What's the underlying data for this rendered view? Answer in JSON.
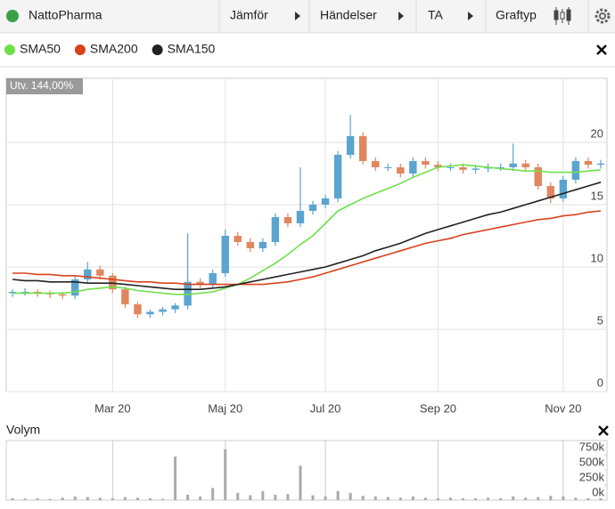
{
  "toolbar": {
    "title": "NattoPharma",
    "menus": [
      "Jämför",
      "Händelser",
      "TA",
      "Graftyp"
    ]
  },
  "chart_data": [
    {
      "type": "candlestick",
      "annotation": "Utv. 144,00%",
      "categories": [
        null,
        null,
        null,
        null,
        null,
        null,
        null,
        null,
        "Mar 20",
        null,
        null,
        null,
        null,
        null,
        null,
        null,
        null,
        "Maj 20",
        null,
        null,
        null,
        null,
        null,
        null,
        null,
        "Jul 20",
        null,
        null,
        null,
        null,
        null,
        null,
        null,
        null,
        "Sep 20",
        null,
        null,
        null,
        null,
        null,
        null,
        null,
        null,
        null,
        "Nov 20",
        null,
        null,
        null
      ],
      "open": [
        7.9,
        8.0,
        8.0,
        7.9,
        7.8,
        7.7,
        9.0,
        9.8,
        9.3,
        8.2,
        7.0,
        6.2,
        6.4,
        6.6,
        6.9,
        8.8,
        8.6,
        9.5,
        12.5,
        12.0,
        11.5,
        12.0,
        14.0,
        13.5,
        14.5,
        15.0,
        15.5,
        19.0,
        20.5,
        18.5,
        18.0,
        18.0,
        17.5,
        18.5,
        18.2,
        18.0,
        18.0,
        17.8,
        17.9,
        18.0,
        18.0,
        18.3,
        18.0,
        16.5,
        15.5,
        17.0,
        18.5,
        18.2
      ],
      "high": [
        8.2,
        8.3,
        8.2,
        8.1,
        8.0,
        9.3,
        10.4,
        10.1,
        9.5,
        8.4,
        7.2,
        6.6,
        6.8,
        7.1,
        12.7,
        9.1,
        9.8,
        13.0,
        12.8,
        12.3,
        12.3,
        14.3,
        14.3,
        18.0,
        15.3,
        15.8,
        19.3,
        22.2,
        20.8,
        18.8,
        18.3,
        18.3,
        18.8,
        18.8,
        18.5,
        18.3,
        18.3,
        18.2,
        18.3,
        18.3,
        19.9,
        18.6,
        18.3,
        16.8,
        17.3,
        18.8,
        18.8,
        18.6
      ],
      "low": [
        7.6,
        7.7,
        7.6,
        7.5,
        7.4,
        7.4,
        8.7,
        9.0,
        7.9,
        6.7,
        5.9,
        5.9,
        6.1,
        6.3,
        6.6,
        8.3,
        8.3,
        9.2,
        11.7,
        11.2,
        11.2,
        11.7,
        13.2,
        13.2,
        14.2,
        14.7,
        15.2,
        18.7,
        18.2,
        17.7,
        17.7,
        17.2,
        17.2,
        17.9,
        17.7,
        17.7,
        17.5,
        17.5,
        17.6,
        17.7,
        17.7,
        17.7,
        16.2,
        15.1,
        15.2,
        16.7,
        17.9,
        17.9
      ],
      "close": [
        8.0,
        8.0,
        7.9,
        7.8,
        7.7,
        9.0,
        9.8,
        9.3,
        8.2,
        7.0,
        6.2,
        6.4,
        6.6,
        6.9,
        8.8,
        8.6,
        9.5,
        12.5,
        12.0,
        11.5,
        12.0,
        14.0,
        13.5,
        14.5,
        15.0,
        15.5,
        19.0,
        20.5,
        18.5,
        18.0,
        18.0,
        17.5,
        18.5,
        18.2,
        18.0,
        18.0,
        17.8,
        17.9,
        18.0,
        18.0,
        18.3,
        18.0,
        16.5,
        15.5,
        17.0,
        18.5,
        18.2,
        18.3
      ],
      "up_color": "#5ba4cf",
      "down_color": "#e0875f",
      "series": [
        {
          "name": "SMA50",
          "color": "#6fe04a",
          "values": [
            7.9,
            7.9,
            7.9,
            7.9,
            7.9,
            8.0,
            8.2,
            8.3,
            8.4,
            8.3,
            8.1,
            8.0,
            7.9,
            7.8,
            7.8,
            7.9,
            8.0,
            8.3,
            8.6,
            9.1,
            9.7,
            10.3,
            11.0,
            11.8,
            12.5,
            13.5,
            14.5,
            15.0,
            15.5,
            15.9,
            16.3,
            16.7,
            17.2,
            17.6,
            18.0,
            18.1,
            18.2,
            18.1,
            18.0,
            17.9,
            17.8,
            17.7,
            17.7,
            17.6,
            17.6,
            17.6,
            17.7,
            17.8
          ]
        },
        {
          "name": "SMA200",
          "color": "#d9421c",
          "values": [
            9.5,
            9.5,
            9.4,
            9.4,
            9.3,
            9.3,
            9.2,
            9.1,
            9.0,
            8.9,
            8.8,
            8.8,
            8.7,
            8.7,
            8.6,
            8.6,
            8.6,
            8.6,
            8.6,
            8.6,
            8.6,
            8.7,
            8.8,
            9.0,
            9.2,
            9.5,
            9.8,
            10.1,
            10.4,
            10.7,
            11.0,
            11.3,
            11.6,
            11.9,
            12.1,
            12.3,
            12.6,
            12.8,
            13.0,
            13.2,
            13.4,
            13.6,
            13.8,
            13.9,
            14.1,
            14.2,
            14.4,
            14.5
          ]
        },
        {
          "name": "SMA150",
          "color": "#222222",
          "values": [
            9.0,
            8.9,
            8.9,
            8.8,
            8.8,
            8.8,
            8.7,
            8.7,
            8.7,
            8.6,
            8.5,
            8.4,
            8.3,
            8.2,
            8.2,
            8.2,
            8.3,
            8.4,
            8.6,
            8.8,
            9.0,
            9.2,
            9.4,
            9.6,
            9.8,
            10.0,
            10.3,
            10.6,
            10.9,
            11.3,
            11.6,
            11.9,
            12.3,
            12.7,
            13.0,
            13.3,
            13.6,
            13.9,
            14.2,
            14.4,
            14.7,
            15.0,
            15.3,
            15.6,
            15.9,
            16.2,
            16.5,
            16.8
          ]
        }
      ],
      "ylim": [
        0,
        25.14
      ],
      "yticks": [
        0,
        5,
        10,
        15,
        20
      ],
      "grid": true
    },
    {
      "type": "bar",
      "title": "Volym",
      "color": "#aaaaaa",
      "values": [
        30000,
        25000,
        30000,
        20000,
        40000,
        60000,
        50000,
        40000,
        30000,
        50000,
        40000,
        30000,
        20000,
        720000,
        90000,
        60000,
        200000,
        840000,
        120000,
        80000,
        150000,
        90000,
        100000,
        570000,
        80000,
        60000,
        150000,
        120000,
        70000,
        60000,
        50000,
        40000,
        60000,
        40000,
        30000,
        40000,
        30000,
        30000,
        40000,
        30000,
        60000,
        40000,
        50000,
        70000,
        60000,
        40000,
        30000,
        30000
      ],
      "ylim": [
        0,
        985000
      ],
      "yticks": [
        {
          "value": 0,
          "label": "0k"
        },
        {
          "value": 250000,
          "label": "250k"
        },
        {
          "value": 500000,
          "label": "500k"
        },
        {
          "value": 750000,
          "label": "750k"
        }
      ]
    }
  ]
}
